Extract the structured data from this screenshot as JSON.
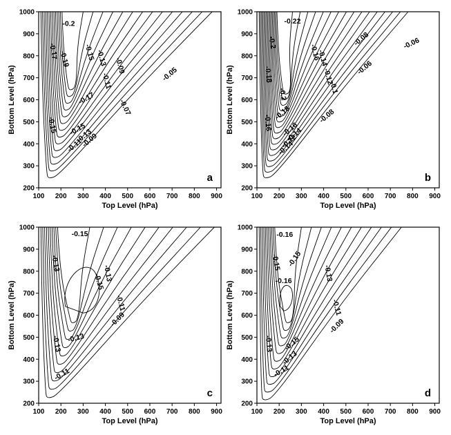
{
  "chart_data": [
    {
      "type": "contour",
      "panel_letter": "a",
      "xlabel": "Top Level (hPa)",
      "ylabel": "Bottom Level (hPa)",
      "xlim": [
        100,
        920
      ],
      "ylim": [
        200,
        1000
      ],
      "x_ticks": [
        100,
        200,
        300,
        400,
        500,
        600,
        700,
        800,
        900
      ],
      "y_ticks": [
        200,
        300,
        400,
        500,
        600,
        700,
        800,
        900,
        1000
      ],
      "contour_labels": [
        {
          "text": "-0.2",
          "x": 235,
          "y": 945,
          "rot": 0
        },
        {
          "text": "-0.17",
          "x": 165,
          "y": 820,
          "rot": 80
        },
        {
          "text": "-0.19",
          "x": 215,
          "y": 785,
          "rot": 75
        },
        {
          "text": "-0.15",
          "x": 328,
          "y": 815,
          "rot": 75
        },
        {
          "text": "-0.13",
          "x": 382,
          "y": 790,
          "rot": 75
        },
        {
          "text": "-0.11",
          "x": 405,
          "y": 685,
          "rot": 75
        },
        {
          "text": "-0.09",
          "x": 465,
          "y": 755,
          "rot": 75
        },
        {
          "text": "-0.05",
          "x": 690,
          "y": 715,
          "rot": -40
        },
        {
          "text": "-0.07",
          "x": 488,
          "y": 565,
          "rot": 65
        },
        {
          "text": "-0.17",
          "x": 315,
          "y": 605,
          "rot": -30
        },
        {
          "text": "-0.15",
          "x": 160,
          "y": 485,
          "rot": 80
        },
        {
          "text": "-0.15",
          "x": 275,
          "y": 465,
          "rot": -30
        },
        {
          "text": "-0.13",
          "x": 305,
          "y": 435,
          "rot": -40
        },
        {
          "text": "-0.11",
          "x": 262,
          "y": 392,
          "rot": -40
        },
        {
          "text": "-0.09",
          "x": 330,
          "y": 415,
          "rot": -40
        }
      ]
    },
    {
      "type": "contour",
      "panel_letter": "b",
      "xlabel": "Top Level (hPa)",
      "ylabel": "Bottom Level (hPa)",
      "xlim": [
        100,
        920
      ],
      "ylim": [
        200,
        1000
      ],
      "x_ticks": [
        100,
        200,
        300,
        400,
        500,
        600,
        700,
        800,
        900
      ],
      "y_ticks": [
        200,
        300,
        400,
        500,
        600,
        700,
        800,
        900,
        1000
      ],
      "contour_labels": [
        {
          "text": "-0.22",
          "x": 260,
          "y": 955,
          "rot": 0
        },
        {
          "text": "-0.2",
          "x": 168,
          "y": 860,
          "rot": 80
        },
        {
          "text": "-0.18",
          "x": 150,
          "y": 715,
          "rot": 85
        },
        {
          "text": "-0.16",
          "x": 360,
          "y": 815,
          "rot": 75
        },
        {
          "text": "-0.14",
          "x": 395,
          "y": 790,
          "rot": 75
        },
        {
          "text": "-0.12",
          "x": 420,
          "y": 705,
          "rot": 75
        },
        {
          "text": "-0.1",
          "x": 445,
          "y": 655,
          "rot": 75
        },
        {
          "text": "-0.08",
          "x": 570,
          "y": 875,
          "rot": -40
        },
        {
          "text": "-0.06",
          "x": 795,
          "y": 855,
          "rot": -25
        },
        {
          "text": "-0.06",
          "x": 585,
          "y": 745,
          "rot": -40
        },
        {
          "text": "-0.08",
          "x": 415,
          "y": 525,
          "rot": -40
        },
        {
          "text": "-0.2",
          "x": 215,
          "y": 625,
          "rot": 80
        },
        {
          "text": "-0.18",
          "x": 215,
          "y": 540,
          "rot": -40
        },
        {
          "text": "-0.16",
          "x": 148,
          "y": 495,
          "rot": 85
        },
        {
          "text": "-0.16",
          "x": 250,
          "y": 465,
          "rot": -40
        },
        {
          "text": "-0.14",
          "x": 268,
          "y": 440,
          "rot": -40
        },
        {
          "text": "-0.12",
          "x": 245,
          "y": 410,
          "rot": -40
        },
        {
          "text": "-0.14",
          "x": 230,
          "y": 380,
          "rot": -40
        }
      ]
    },
    {
      "type": "contour",
      "panel_letter": "c",
      "xlabel": "Top Level (hPa)",
      "ylabel": "Bottom Level (hPa)",
      "xlim": [
        100,
        920
      ],
      "ylim": [
        200,
        1000
      ],
      "x_ticks": [
        100,
        200,
        300,
        400,
        500,
        600,
        700,
        800,
        900
      ],
      "y_ticks": [
        200,
        300,
        400,
        500,
        600,
        700,
        800,
        900,
        1000
      ],
      "contour_labels": [
        {
          "text": "-0.15",
          "x": 285,
          "y": 968,
          "rot": 0
        },
        {
          "text": "-0.13",
          "x": 175,
          "y": 835,
          "rot": 80
        },
        {
          "text": "-0.15",
          "x": 370,
          "y": 752,
          "rot": 75
        },
        {
          "text": "-0.13",
          "x": 410,
          "y": 790,
          "rot": 80
        },
        {
          "text": "-0.11",
          "x": 468,
          "y": 655,
          "rot": 75
        },
        {
          "text": "-0.09",
          "x": 455,
          "y": 580,
          "rot": -45
        },
        {
          "text": "-0.13",
          "x": 180,
          "y": 470,
          "rot": 80
        },
        {
          "text": "-0.13",
          "x": 268,
          "y": 495,
          "rot": -15
        },
        {
          "text": "-0.11",
          "x": 205,
          "y": 330,
          "rot": -30
        }
      ]
    },
    {
      "type": "contour",
      "panel_letter": "d",
      "xlabel": "Top Level (hPa)",
      "ylabel": "Bottom Level (hPa)",
      "xlim": [
        100,
        920
      ],
      "ylim": [
        200,
        1000
      ],
      "x_ticks": [
        100,
        200,
        300,
        400,
        500,
        600,
        700,
        800,
        900
      ],
      "y_ticks": [
        200,
        300,
        400,
        500,
        600,
        700,
        800,
        900,
        1000
      ],
      "contour_labels": [
        {
          "text": "-0.16",
          "x": 225,
          "y": 965,
          "rot": 0
        },
        {
          "text": "-0.15",
          "x": 185,
          "y": 840,
          "rot": 80
        },
        {
          "text": "-0.15",
          "x": 270,
          "y": 855,
          "rot": -55
        },
        {
          "text": "-0.16",
          "x": 220,
          "y": 755,
          "rot": 0
        },
        {
          "text": "-0.13",
          "x": 420,
          "y": 790,
          "rot": 80
        },
        {
          "text": "-0.11",
          "x": 458,
          "y": 635,
          "rot": 75
        },
        {
          "text": "-0.09",
          "x": 460,
          "y": 550,
          "rot": -45
        },
        {
          "text": "-0.13",
          "x": 152,
          "y": 470,
          "rot": 85
        },
        {
          "text": "-0.15",
          "x": 258,
          "y": 470,
          "rot": -40
        },
        {
          "text": "-0.13",
          "x": 248,
          "y": 405,
          "rot": -40
        },
        {
          "text": "-0.11",
          "x": 210,
          "y": 345,
          "rot": -30
        }
      ]
    }
  ]
}
